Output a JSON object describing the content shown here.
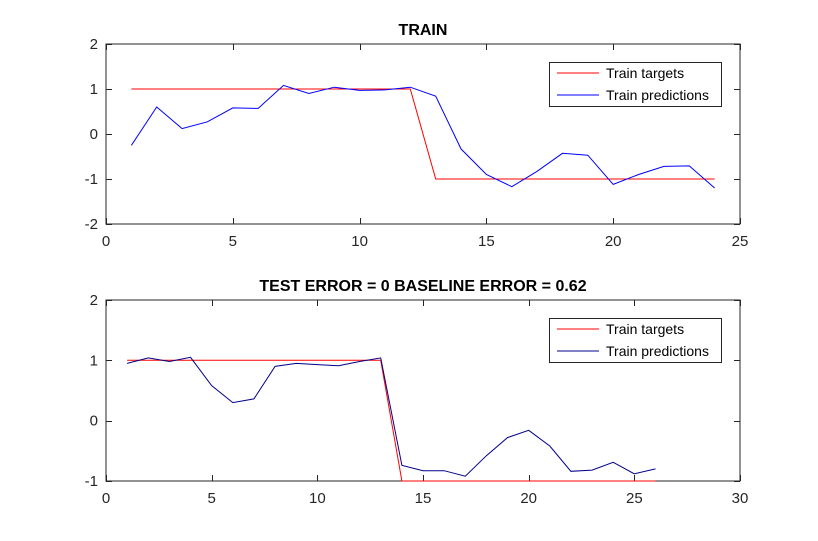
{
  "chart_data": [
    {
      "type": "line",
      "title": "TRAIN",
      "xlabel": "",
      "ylabel": "",
      "xlim": [
        0,
        25
      ],
      "ylim": [
        -2,
        2
      ],
      "xticks": [
        0,
        5,
        10,
        15,
        20,
        25
      ],
      "yticks": [
        -2,
        -1,
        0,
        1,
        2
      ],
      "grid": false,
      "legend_position": "top-right",
      "series": [
        {
          "name": "Train targets",
          "color": "#ff0000",
          "x": [
            1,
            2,
            3,
            4,
            5,
            6,
            7,
            8,
            9,
            10,
            11,
            12,
            13,
            14,
            15,
            16,
            17,
            18,
            19,
            20,
            21,
            22,
            23,
            24
          ],
          "y": [
            1,
            1,
            1,
            1,
            1,
            1,
            1,
            1,
            1,
            1,
            1,
            1,
            -1,
            -1,
            -1,
            -1,
            -1,
            -1,
            -1,
            -1,
            -1,
            -1,
            -1,
            -1
          ]
        },
        {
          "name": "Train predictions",
          "color": "#0000ff",
          "x": [
            1,
            2,
            3,
            4,
            5,
            6,
            7,
            8,
            9,
            10,
            11,
            12,
            13,
            14,
            15,
            16,
            17,
            18,
            19,
            20,
            21,
            22,
            23,
            24
          ],
          "y": [
            -0.25,
            0.6,
            0.12,
            0.27,
            0.58,
            0.57,
            1.08,
            0.9,
            1.04,
            0.97,
            0.98,
            1.04,
            0.84,
            -0.33,
            -0.9,
            -1.17,
            -0.83,
            -0.43,
            -0.47,
            -1.12,
            -0.9,
            -0.72,
            -0.71,
            -1.2
          ]
        }
      ]
    },
    {
      "type": "line",
      "title": "TEST ERROR = 0 BASELINE ERROR = 0.62",
      "xlabel": "",
      "ylabel": "",
      "xlim": [
        0,
        30
      ],
      "ylim": [
        -1,
        2
      ],
      "xticks": [
        0,
        5,
        10,
        15,
        20,
        25,
        30
      ],
      "yticks": [
        -1,
        0,
        1,
        2
      ],
      "grid": false,
      "legend_position": "top-right",
      "series": [
        {
          "name": "Train targets",
          "color": "#ff0000",
          "x": [
            1,
            2,
            3,
            4,
            5,
            6,
            7,
            8,
            9,
            10,
            11,
            12,
            13,
            14,
            15,
            16,
            17,
            18,
            19,
            20,
            21,
            22,
            23,
            24,
            25,
            26
          ],
          "y": [
            1,
            1,
            1,
            1,
            1,
            1,
            1,
            1,
            1,
            1,
            1,
            1,
            1,
            -1,
            -1,
            -1,
            -1,
            -1,
            -1,
            -1,
            -1,
            -1,
            -1,
            -1,
            -1,
            -1
          ]
        },
        {
          "name": "Train predictions",
          "color": "#00008b",
          "x": [
            1,
            2,
            3,
            4,
            5,
            6,
            7,
            8,
            9,
            10,
            11,
            12,
            13,
            14,
            15,
            16,
            17,
            18,
            19,
            20,
            21,
            22,
            23,
            24,
            25,
            26
          ],
          "y": [
            0.95,
            1.04,
            0.98,
            1.05,
            0.58,
            0.3,
            0.36,
            0.9,
            0.95,
            0.93,
            0.91,
            0.98,
            1.04,
            -0.74,
            -0.83,
            -0.83,
            -0.92,
            -0.58,
            -0.28,
            -0.16,
            -0.42,
            -0.84,
            -0.82,
            -0.69,
            -0.88,
            -0.8
          ]
        }
      ]
    }
  ]
}
